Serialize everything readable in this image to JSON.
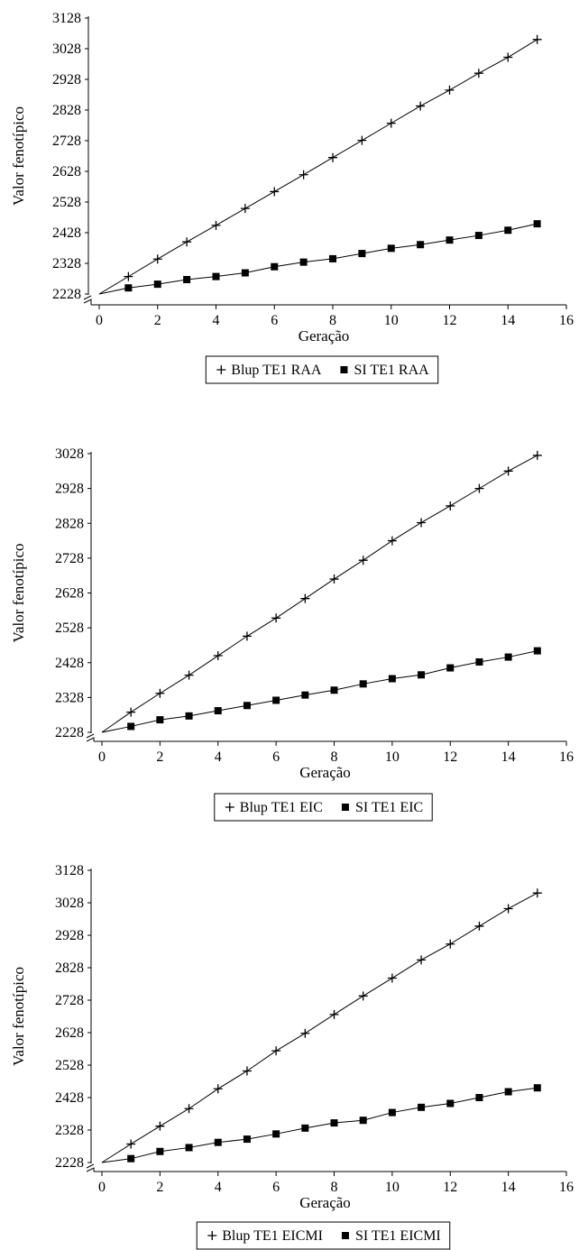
{
  "chart_data": [
    {
      "type": "line",
      "xlabel": "Geração",
      "ylabel": "Valor fenotípico",
      "xlim": [
        0,
        16
      ],
      "ylim": [
        2228,
        3128
      ],
      "xticks": [
        "0",
        "2",
        "4",
        "6",
        "8",
        "10",
        "12",
        "14",
        "16"
      ],
      "yticks": [
        "2228",
        "2328",
        "2428",
        "2528",
        "2628",
        "2728",
        "2828",
        "2928",
        "3028",
        "3128"
      ],
      "x": [
        0,
        1,
        2,
        3,
        4,
        5,
        6,
        7,
        8,
        9,
        10,
        11,
        12,
        13,
        14,
        15
      ],
      "legend_position": "bottom",
      "series": [
        {
          "name": "Blup TE1 RAA",
          "marker": "plus",
          "values": [
            2228,
            2285,
            2342,
            2398,
            2452,
            2507,
            2562,
            2617,
            2673,
            2729,
            2785,
            2841,
            2893,
            2948,
            3000,
            3058
          ]
        },
        {
          "name": "SI TE1 RAA",
          "marker": "square",
          "values": [
            2228,
            2248,
            2260,
            2275,
            2285,
            2297,
            2317,
            2332,
            2343,
            2360,
            2377,
            2389,
            2404,
            2419,
            2436,
            2457
          ]
        }
      ]
    },
    {
      "type": "line",
      "xlabel": "Geração",
      "ylabel": "Valor fenotípico",
      "xlim": [
        0,
        16
      ],
      "ylim": [
        2228,
        3028
      ],
      "xticks": [
        "0",
        "2",
        "4",
        "6",
        "8",
        "10",
        "12",
        "14",
        "16"
      ],
      "yticks": [
        "2228",
        "2328",
        "2428",
        "2528",
        "2628",
        "2728",
        "2828",
        "2928",
        "3028"
      ],
      "x": [
        0,
        1,
        2,
        3,
        4,
        5,
        6,
        7,
        8,
        9,
        10,
        11,
        12,
        13,
        14,
        15
      ],
      "legend_position": "bottom",
      "series": [
        {
          "name": "Blup TE1 EIC",
          "marker": "plus",
          "values": [
            2228,
            2286,
            2340,
            2392,
            2448,
            2504,
            2556,
            2612,
            2668,
            2722,
            2778,
            2830,
            2878,
            2928,
            2978,
            3023
          ]
        },
        {
          "name": "SI TE1 EIC",
          "marker": "square",
          "values": [
            2228,
            2245,
            2264,
            2275,
            2290,
            2305,
            2320,
            2335,
            2349,
            2367,
            2382,
            2393,
            2413,
            2430,
            2444,
            2462
          ]
        }
      ]
    },
    {
      "type": "line",
      "xlabel": "Geração",
      "ylabel": "Valor fenotípico",
      "xlim": [
        0,
        16
      ],
      "ylim": [
        2228,
        3128
      ],
      "xticks": [
        "0",
        "2",
        "4",
        "6",
        "8",
        "10",
        "12",
        "14",
        "16"
      ],
      "yticks": [
        "2228",
        "2328",
        "2428",
        "2528",
        "2628",
        "2728",
        "2828",
        "2928",
        "3028",
        "3128"
      ],
      "x": [
        0,
        1,
        2,
        3,
        4,
        5,
        6,
        7,
        8,
        9,
        10,
        11,
        12,
        13,
        14,
        15
      ],
      "legend_position": "bottom",
      "series": [
        {
          "name": "Blup TE1 EICMI",
          "marker": "plus",
          "values": [
            2228,
            2285,
            2340,
            2394,
            2455,
            2510,
            2572,
            2626,
            2684,
            2741,
            2796,
            2852,
            2901,
            2956,
            3010,
            3058
          ]
        },
        {
          "name": "SI TE1 EICMI",
          "marker": "square",
          "values": [
            2228,
            2240,
            2262,
            2274,
            2290,
            2300,
            2316,
            2334,
            2350,
            2358,
            2382,
            2398,
            2410,
            2428,
            2446,
            2458
          ]
        }
      ]
    }
  ]
}
